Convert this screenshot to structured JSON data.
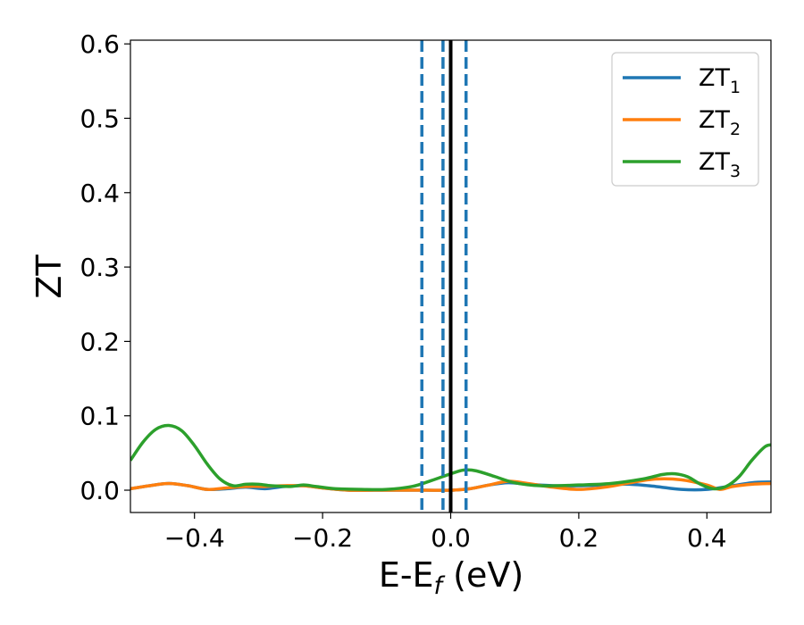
{
  "chart_data": {
    "type": "line",
    "xlabel": {
      "main": "E-E",
      "sub": "f",
      "unit": " (eV)"
    },
    "ylabel": "ZT",
    "xlim": [
      -0.5,
      0.5
    ],
    "ylim": [
      -0.03,
      0.605
    ],
    "xticks": [
      {
        "value": -0.4,
        "label": "−0.4"
      },
      {
        "value": -0.2,
        "label": "−0.2"
      },
      {
        "value": 0.0,
        "label": "0.0"
      },
      {
        "value": 0.2,
        "label": "0.2"
      },
      {
        "value": 0.4,
        "label": "0.4"
      }
    ],
    "yticks": [
      {
        "value": 0.0,
        "label": "0.0"
      },
      {
        "value": 0.1,
        "label": "0.1"
      },
      {
        "value": 0.2,
        "label": "0.2"
      },
      {
        "value": 0.3,
        "label": "0.3"
      },
      {
        "value": 0.4,
        "label": "0.4"
      },
      {
        "value": 0.5,
        "label": "0.5"
      },
      {
        "value": 0.6,
        "label": "0.6"
      }
    ],
    "grid": false,
    "legend_position": "top-right",
    "series": [
      {
        "name": "ZT",
        "sub": "1",
        "color": "#1f77b4",
        "x": [
          -0.5,
          -0.47,
          -0.44,
          -0.41,
          -0.38,
          -0.35,
          -0.32,
          -0.29,
          -0.26,
          -0.23,
          -0.2,
          -0.16,
          -0.12,
          -0.08,
          -0.04,
          0.0,
          0.03,
          0.06,
          0.09,
          0.12,
          0.16,
          0.2,
          0.24,
          0.28,
          0.32,
          0.36,
          0.4,
          0.44,
          0.47,
          0.5
        ],
        "y": [
          0.002,
          0.006,
          0.009,
          0.006,
          0.001,
          0.002,
          0.004,
          0.002,
          0.005,
          0.006,
          0.003,
          0.0,
          0.0,
          0.0,
          0.0,
          0.0,
          0.002,
          0.007,
          0.01,
          0.008,
          0.006,
          0.006,
          0.007,
          0.008,
          0.005,
          0.001,
          0.001,
          0.006,
          0.01,
          0.011
        ]
      },
      {
        "name": "ZT",
        "sub": "2",
        "color": "#ff7f0e",
        "x": [
          -0.5,
          -0.47,
          -0.44,
          -0.41,
          -0.38,
          -0.35,
          -0.32,
          -0.29,
          -0.26,
          -0.23,
          -0.2,
          -0.16,
          -0.12,
          -0.08,
          -0.04,
          0.0,
          0.03,
          0.06,
          0.09,
          0.12,
          0.16,
          0.2,
          0.24,
          0.28,
          0.32,
          0.36,
          0.4,
          0.42,
          0.44,
          0.47,
          0.5
        ],
        "y": [
          0.002,
          0.006,
          0.009,
          0.006,
          0.001,
          0.003,
          0.005,
          0.005,
          0.006,
          0.006,
          0.003,
          0.0,
          0.0,
          0.0,
          0.0,
          0.0,
          0.002,
          0.007,
          0.012,
          0.009,
          0.004,
          0.001,
          0.004,
          0.01,
          0.015,
          0.014,
          0.007,
          0.001,
          0.005,
          0.008,
          0.009
        ]
      },
      {
        "name": "ZT",
        "sub": "3",
        "color": "#2ca02c",
        "x": [
          -0.5,
          -0.48,
          -0.46,
          -0.44,
          -0.42,
          -0.4,
          -0.38,
          -0.36,
          -0.34,
          -0.32,
          -0.3,
          -0.28,
          -0.25,
          -0.23,
          -0.21,
          -0.18,
          -0.14,
          -0.1,
          -0.06,
          -0.03,
          0.0,
          0.02,
          0.04,
          0.07,
          0.1,
          0.14,
          0.2,
          0.25,
          0.3,
          0.33,
          0.35,
          0.37,
          0.39,
          0.41,
          0.43,
          0.45,
          0.47,
          0.49,
          0.5
        ],
        "y": [
          0.04,
          0.065,
          0.082,
          0.087,
          0.08,
          0.06,
          0.035,
          0.015,
          0.006,
          0.008,
          0.008,
          0.006,
          0.005,
          0.007,
          0.005,
          0.002,
          0.001,
          0.001,
          0.005,
          0.013,
          0.022,
          0.027,
          0.026,
          0.018,
          0.01,
          0.006,
          0.007,
          0.009,
          0.015,
          0.021,
          0.022,
          0.018,
          0.008,
          0.002,
          0.005,
          0.018,
          0.04,
          0.058,
          0.061
        ]
      }
    ],
    "vlines": [
      {
        "x": 0.0,
        "style": "solid",
        "color": "#000000"
      },
      {
        "x": -0.045,
        "style": "dashed",
        "color": "#1f77b4"
      },
      {
        "x": -0.012,
        "style": "dashed",
        "color": "#1f77b4"
      },
      {
        "x": 0.024,
        "style": "dashed",
        "color": "#1f77b4"
      }
    ]
  }
}
